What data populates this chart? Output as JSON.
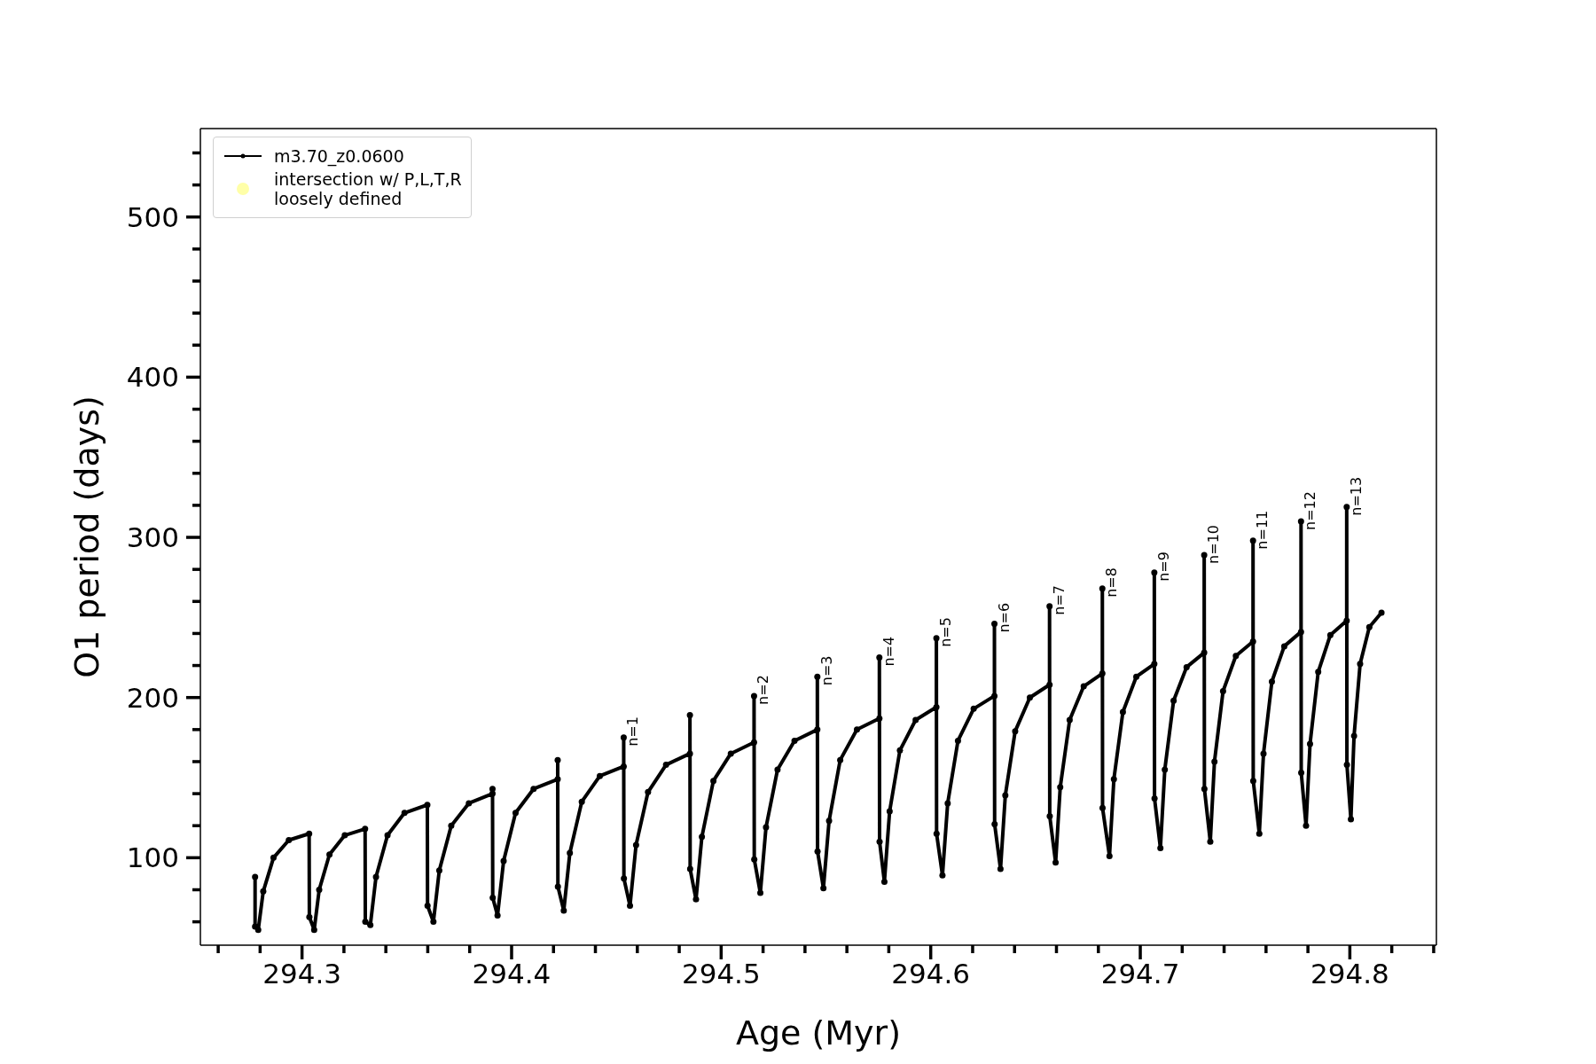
{
  "chart_data": {
    "type": "line",
    "xlabel": "Age (Myr)",
    "ylabel": "O1 period (days)",
    "xlim": [
      294.2515,
      294.8413
    ],
    "ylim": [
      45.4,
      555.2
    ],
    "xticks": [
      {
        "value": 294.26,
        "label": null
      },
      {
        "value": 294.28,
        "label": null
      },
      294.3,
      {
        "value": 294.32,
        "label": null
      },
      {
        "value": 294.34,
        "label": null
      },
      {
        "value": 294.36,
        "label": null
      },
      {
        "value": 294.38,
        "label": null
      },
      294.4,
      {
        "value": 294.42,
        "label": null
      },
      {
        "value": 294.44,
        "label": null
      },
      {
        "value": 294.46,
        "label": null
      },
      {
        "value": 294.48,
        "label": null
      },
      294.5,
      {
        "value": 294.52,
        "label": null
      },
      {
        "value": 294.54,
        "label": null
      },
      {
        "value": 294.56,
        "label": null
      },
      {
        "value": 294.58,
        "label": null
      },
      294.6,
      {
        "value": 294.62,
        "label": null
      },
      {
        "value": 294.64,
        "label": null
      },
      {
        "value": 294.66,
        "label": null
      },
      {
        "value": 294.68,
        "label": null
      },
      294.7,
      {
        "value": 294.72,
        "label": null
      },
      {
        "value": 294.74,
        "label": null
      },
      {
        "value": 294.76,
        "label": null
      },
      {
        "value": 294.78,
        "label": null
      },
      294.8,
      {
        "value": 294.82,
        "label": null
      },
      {
        "value": 294.84,
        "label": null
      }
    ],
    "yticks": [
      {
        "value": 60,
        "label": null
      },
      {
        "value": 80,
        "label": null
      },
      100,
      {
        "value": 120,
        "label": null
      },
      {
        "value": 140,
        "label": null
      },
      {
        "value": 160,
        "label": null
      },
      {
        "value": 180,
        "label": null
      },
      200,
      {
        "value": 220,
        "label": null
      },
      {
        "value": 240,
        "label": null
      },
      {
        "value": 260,
        "label": null
      },
      {
        "value": 280,
        "label": null
      },
      300,
      {
        "value": 320,
        "label": null
      },
      {
        "value": 340,
        "label": null
      },
      {
        "value": 360,
        "label": null
      },
      {
        "value": 380,
        "label": null
      },
      400,
      {
        "value": 420,
        "label": null
      },
      {
        "value": 440,
        "label": null
      },
      {
        "value": 460,
        "label": null
      },
      {
        "value": 480,
        "label": null
      },
      500,
      {
        "value": 520,
        "label": null
      },
      {
        "value": 540,
        "label": null
      }
    ],
    "grid": false,
    "legend": "top left",
    "marker": "circle",
    "line_style": "solid",
    "series": [
      {
        "name": "m3.70_z0.0600",
        "color": "#000000",
        "x": [
          294.2776,
          294.2776,
          294.2791,
          294.2815,
          294.2864,
          294.2937,
          294.3034,
          294.3035,
          294.3058,
          294.3082,
          294.3131,
          294.3204,
          294.3301,
          294.3302,
          294.3326,
          294.3353,
          294.3408,
          294.3489,
          294.3598,
          294.3599,
          294.3627,
          294.3655,
          294.3712,
          294.3796,
          294.3909,
          294.3909,
          294.391,
          294.3933,
          294.3962,
          294.4019,
          294.4105,
          294.422,
          294.422,
          294.4221,
          294.4249,
          294.4278,
          294.4335,
          294.4421,
          294.4535,
          294.4535,
          294.4536,
          294.4565,
          294.4594,
          294.4651,
          294.4737,
          294.4851,
          294.4851,
          294.4852,
          294.488,
          294.4908,
          294.4963,
          294.5046,
          294.5157,
          294.5157,
          294.5158,
          294.5187,
          294.5214,
          294.5269,
          294.535,
          294.5459,
          294.5459,
          294.546,
          294.5488,
          294.5515,
          294.5568,
          294.5648,
          294.5755,
          294.5755,
          294.5756,
          294.5779,
          294.5804,
          294.5853,
          294.5928,
          294.6027,
          294.6027,
          294.6028,
          294.6056,
          294.6081,
          294.613,
          294.6205,
          294.6304,
          294.6304,
          294.6305,
          294.6333,
          294.6356,
          294.6403,
          294.6473,
          294.6567,
          294.6567,
          294.6568,
          294.6596,
          294.6618,
          294.6663,
          294.673,
          294.6819,
          294.6819,
          294.682,
          294.6853,
          294.6874,
          294.6917,
          294.6981,
          294.7067,
          294.7067,
          294.7068,
          294.7096,
          294.7117,
          294.7159,
          294.7221,
          294.7305,
          294.7305,
          294.7306,
          294.7334,
          294.7354,
          294.7395,
          294.7456,
          294.7538,
          294.7538,
          294.7539,
          294.7568,
          294.7588,
          294.7628,
          294.7687,
          294.7767,
          294.7767,
          294.7768,
          294.7791,
          294.781,
          294.7849,
          294.7907,
          294.7985,
          294.7985,
          294.7986,
          294.8005,
          294.802,
          294.8049,
          294.8093,
          294.8151
        ],
        "values": [
          88,
          57,
          55,
          79,
          100,
          111,
          115,
          63,
          55,
          80,
          102,
          114,
          118,
          60,
          58,
          88,
          114,
          128,
          133,
          70,
          60,
          92,
          120,
          134,
          140,
          143,
          75,
          64,
          98,
          128,
          143,
          149,
          161,
          82,
          67,
          103,
          135,
          151,
          157,
          175,
          87,
          70,
          108,
          141,
          158,
          165,
          189,
          93,
          74,
          113,
          148,
          165,
          172,
          201,
          99,
          78,
          119,
          155,
          173,
          180,
          213,
          104,
          81,
          123,
          161,
          180,
          187,
          225,
          110,
          85,
          129,
          167,
          186,
          194,
          237,
          115,
          89,
          134,
          173,
          193,
          201,
          246,
          121,
          93,
          139,
          179,
          200,
          208,
          257,
          126,
          97,
          144,
          186,
          207,
          215,
          268,
          131,
          101,
          149,
          191,
          213,
          221,
          278,
          137,
          106,
          155,
          198,
          219,
          228,
          289,
          143,
          110,
          160,
          204,
          226,
          235,
          298,
          148,
          115,
          165,
          210,
          232,
          241,
          310,
          153,
          120,
          171,
          216,
          239,
          248,
          319,
          158,
          124,
          176,
          221,
          244,
          253
        ]
      },
      {
        "name": "intersection w/ P,L,T,R\nloosely defined",
        "type": "scatter",
        "color": "#ffffa8"
      }
    ],
    "annotations": [
      {
        "text": "n=1",
        "x": 294.4535,
        "y": 175
      },
      {
        "text": "n=2",
        "x": 294.5157,
        "y": 201
      },
      {
        "text": "n=3",
        "x": 294.5459,
        "y": 213
      },
      {
        "text": "n=4",
        "x": 294.5755,
        "y": 225
      },
      {
        "text": "n=5",
        "x": 294.6027,
        "y": 237
      },
      {
        "text": "n=6",
        "x": 294.6304,
        "y": 246
      },
      {
        "text": "n=7",
        "x": 294.6567,
        "y": 257
      },
      {
        "text": "n=8",
        "x": 294.6819,
        "y": 268
      },
      {
        "text": "n=9",
        "x": 294.7067,
        "y": 278
      },
      {
        "text": "n=10",
        "x": 294.7305,
        "y": 289
      },
      {
        "text": "n=11",
        "x": 294.7538,
        "y": 298
      },
      {
        "text": "n=12",
        "x": 294.7767,
        "y": 310
      },
      {
        "text": "n=13",
        "x": 294.7985,
        "y": 319
      }
    ]
  }
}
